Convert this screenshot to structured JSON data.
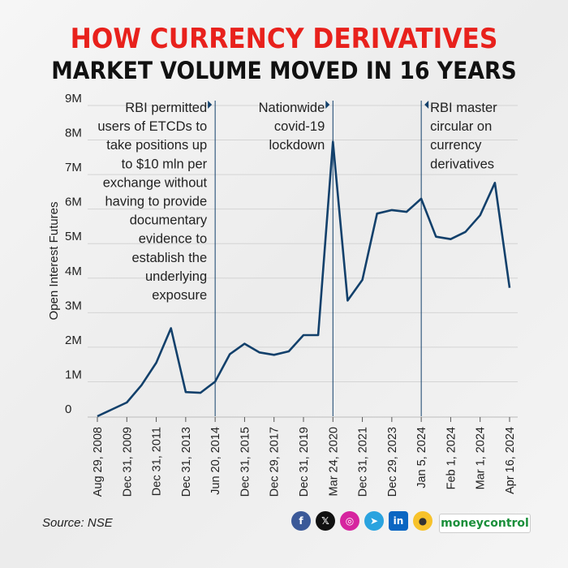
{
  "header": {
    "title_line1": "HOW CURRENCY DERIVATIVES",
    "title_line2": "MARKET VOLUME MOVED IN 16 YEARS"
  },
  "footer": {
    "source": "Source: NSE",
    "brand": "moneycontrol",
    "social_icons": [
      "facebook-icon",
      "x-icon",
      "instagram-icon",
      "telegram-icon",
      "linkedin-icon",
      "koo-icon"
    ]
  },
  "colors": {
    "title_accent": "#e8211c",
    "line": "#12406b",
    "annotation_line": "#12406b"
  },
  "chart_data": {
    "type": "line",
    "title": "HOW CURRENCY DERIVATIVES MARKET VOLUME MOVED IN 16 YEARS",
    "ylabel": "Open Interest Futures",
    "xlabel": "",
    "ylim": [
      0,
      9000000
    ],
    "yticks": [
      0,
      1000000,
      2000000,
      3000000,
      4000000,
      5000000,
      6000000,
      7000000,
      8000000,
      9000000
    ],
    "ytick_labels": [
      "0",
      "1M",
      "2M",
      "3M",
      "4M",
      "5M",
      "6M",
      "7M",
      "8M",
      "9M"
    ],
    "grid": "horizontal",
    "tick_labels": [
      "Aug 29, 2008",
      "Dec 31, 2009",
      "Dec 31, 2011",
      "Dec 31, 2013",
      "Jun 20, 2014",
      "Dec 31, 2015",
      "Dec 29, 2017",
      "Dec 31, 2019",
      "Mar 24, 2020",
      "Dec 31, 2021",
      "Dec 29, 2023",
      "Jan 5, 2024",
      "Feb 1, 2024",
      "Mar 1, 2024",
      "Apr 16, 2024"
    ],
    "tick_index": [
      0,
      2,
      4,
      6,
      8,
      10,
      12,
      14,
      16,
      18,
      20,
      22,
      24,
      26,
      28
    ],
    "values": [
      0,
      200000,
      400000,
      900000,
      1550000,
      2550000,
      700000,
      680000,
      1000000,
      1800000,
      2100000,
      1850000,
      1780000,
      1880000,
      2350000,
      2350000,
      7950000,
      3350000,
      3950000,
      5870000,
      5970000,
      5920000,
      6300000,
      5200000,
      5130000,
      5340000,
      5820000,
      6760000,
      3720000
    ],
    "annotations": [
      {
        "index": 8,
        "side": "left",
        "text": [
          "RBI permitted",
          "users of ETCDs to",
          "take positions up",
          "to $10 mln per",
          "exchange without",
          "having to provide",
          "documentary",
          "evidence to",
          "establish the",
          "underlying",
          "exposure"
        ]
      },
      {
        "index": 16,
        "side": "left",
        "text": [
          "Nationwide",
          "covid-19",
          "lockdown"
        ]
      },
      {
        "index": 22,
        "side": "right",
        "text": [
          "RBI master",
          "circular on",
          "currency",
          "derivatives"
        ]
      }
    ]
  }
}
